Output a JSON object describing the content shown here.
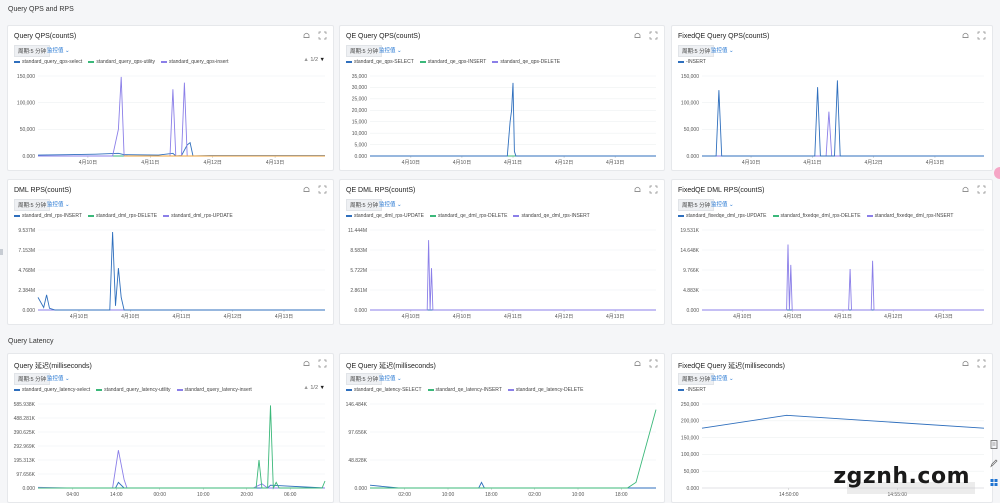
{
  "sections": [
    {
      "title": "Query QPS and RPS"
    },
    {
      "title": "Query Latency"
    }
  ],
  "controls": {
    "period": "周期:5 分钟",
    "metric": "监控值"
  },
  "pager": "1/2",
  "watermark": "zgznh.com",
  "colors": {
    "blue": "#2f6fbd",
    "green": "#3bb87a",
    "purple": "#8b7fe8",
    "orange": "#f0a33a",
    "dark": "#1f5fa8"
  },
  "panels": [
    {
      "id": "p1",
      "title": "Query QPS(countS)",
      "legend": [
        {
          "label": "standard_query_qps-select",
          "color": "#2f6fbd"
        },
        {
          "label": "standard_query_qps-utility",
          "color": "#3bb87a"
        },
        {
          "label": "standard_query_qps-insert",
          "color": "#8b7fe8"
        }
      ],
      "pager": true,
      "chart_data": {
        "type": "line",
        "yticks": [
          "150,000",
          "100,000",
          "50,000",
          "0.000"
        ],
        "ylim": [
          0,
          180000
        ],
        "xticks": [
          "4月10日",
          "4月11日",
          "4月12日",
          "4月13日"
        ],
        "series": [
          {
            "color": "#2f6fbd",
            "points": [
              [
                0,
                2000
              ],
              [
                0.1,
                3000
              ],
              [
                0.2,
                4000
              ],
              [
                0.28,
                6000
              ],
              [
                0.3,
                3000
              ],
              [
                0.42,
                2000
              ],
              [
                0.47,
                6000
              ],
              [
                0.48,
                0
              ],
              [
                0.5,
                1000
              ],
              [
                0.52,
                25000
              ],
              [
                0.53,
                30000
              ],
              [
                0.54,
                0
              ],
              [
                0.6,
                1000
              ],
              [
                1,
                1000
              ]
            ]
          },
          {
            "color": "#3bb87a",
            "points": [
              [
                0,
                0
              ],
              [
                0.3,
                0
              ],
              [
                0.5,
                0
              ],
              [
                1,
                0
              ]
            ]
          },
          {
            "color": "#8b7fe8",
            "points": [
              [
                0,
                0
              ],
              [
                0.26,
                0
              ],
              [
                0.28,
                60000
              ],
              [
                0.29,
                178000
              ],
              [
                0.3,
                0
              ],
              [
                0.46,
                0
              ],
              [
                0.47,
                150000
              ],
              [
                0.48,
                0
              ],
              [
                0.5,
                0
              ],
              [
                0.51,
                165000
              ],
              [
                0.52,
                0
              ],
              [
                1,
                0
              ]
            ]
          },
          {
            "color": "#f0a33a",
            "points": [
              [
                0.3,
                0
              ],
              [
                0.6,
                0
              ],
              [
                1,
                0
              ]
            ]
          }
        ]
      }
    },
    {
      "id": "p2",
      "title": "QE Query QPS(countS)",
      "legend": [
        {
          "label": "standard_qe_qps-SELECT",
          "color": "#2f6fbd"
        },
        {
          "label": "standard_qe_qps-INSERT",
          "color": "#3bb87a"
        },
        {
          "label": "standard_qe_qps-DELETE",
          "color": "#8b7fe8"
        }
      ],
      "chart_data": {
        "type": "line",
        "yticks": [
          "35,000",
          "30,000",
          "25,000",
          "20,000",
          "15,000",
          "10,000",
          "5,000",
          "0.000"
        ],
        "ylim": [
          0,
          35000
        ],
        "xticks": [
          "4月10日",
          "4月10日",
          "4月11日",
          "4月12日",
          "4月13日"
        ],
        "series": [
          {
            "color": "#3bb87a",
            "points": [
              [
                0,
                0
              ],
              [
                1,
                0
              ]
            ]
          },
          {
            "color": "#2f6fbd",
            "points": [
              [
                0,
                0
              ],
              [
                0.48,
                0
              ],
              [
                0.49,
                15000
              ],
              [
                0.495,
                20000
              ],
              [
                0.5,
                32000
              ],
              [
                0.505,
                2000
              ],
              [
                0.51,
                0
              ],
              [
                1,
                0
              ]
            ]
          }
        ]
      }
    },
    {
      "id": "p3",
      "title": "FixedQE Query QPS(countS)",
      "legend": [
        {
          "label": "-INSERT",
          "color": "#2f6fbd"
        }
      ],
      "chart_data": {
        "type": "line",
        "yticks": [
          "150,000",
          "100,000",
          "50,000",
          "0.000"
        ],
        "ylim": [
          0,
          180000
        ],
        "xticks": [
          "4月10日",
          "4月11日",
          "4月12日",
          "4月13日"
        ],
        "series": [
          {
            "color": "#8b7fe8",
            "points": [
              [
                0,
                0
              ],
              [
                0.44,
                0
              ],
              [
                0.45,
                100000
              ],
              [
                0.46,
                0
              ],
              [
                1,
                0
              ]
            ]
          },
          {
            "color": "#2f6fbd",
            "points": [
              [
                0,
                0
              ],
              [
                0.05,
                0
              ],
              [
                0.06,
                148000
              ],
              [
                0.07,
                0
              ],
              [
                0.4,
                0
              ],
              [
                0.41,
                155000
              ],
              [
                0.42,
                0
              ],
              [
                0.47,
                0
              ],
              [
                0.48,
                170000
              ],
              [
                0.49,
                0
              ],
              [
                1,
                0
              ]
            ]
          }
        ]
      }
    },
    {
      "id": "p4",
      "title": "DML RPS(countS)",
      "legend": [
        {
          "label": "standard_dml_rps-INSERT",
          "color": "#2f6fbd"
        },
        {
          "label": "standard_dml_rps-DELETE",
          "color": "#3bb87a"
        },
        {
          "label": "standard_dml_rps-UPDATE",
          "color": "#8b7fe8"
        }
      ],
      "chart_data": {
        "type": "line",
        "yticks": [
          "9.537M",
          "7.153M",
          "4.768M",
          "2.384M",
          "0.000"
        ],
        "ylim": [
          0,
          9.537
        ],
        "xticks": [
          "4月10日",
          "4月10日",
          "4月11日",
          "4月12日",
          "4月13日"
        ],
        "series": [
          {
            "color": "#3bb87a",
            "points": [
              [
                0,
                0
              ],
              [
                1,
                0
              ]
            ]
          },
          {
            "color": "#8b7fe8",
            "points": [
              [
                0,
                0
              ],
              [
                1,
                0
              ]
            ]
          },
          {
            "color": "#2f6fbd",
            "points": [
              [
                0,
                1.5
              ],
              [
                0.02,
                0.3
              ],
              [
                0.03,
                1.8
              ],
              [
                0.04,
                0.2
              ],
              [
                0.06,
                0
              ],
              [
                0.25,
                0
              ],
              [
                0.26,
                9.3
              ],
              [
                0.27,
                0.5
              ],
              [
                0.28,
                5
              ],
              [
                0.29,
                1.5
              ],
              [
                0.3,
                0
              ],
              [
                1,
                0
              ]
            ]
          }
        ]
      }
    },
    {
      "id": "p5",
      "title": "QE DML RPS(countS)",
      "legend": [
        {
          "label": "standard_qe_dml_rps-UPDATE",
          "color": "#2f6fbd"
        },
        {
          "label": "standard_qe_dml_rps-DELETE",
          "color": "#3bb87a"
        },
        {
          "label": "standard_qe_dml_rps-INSERT",
          "color": "#8b7fe8"
        }
      ],
      "chart_data": {
        "type": "line",
        "yticks": [
          "11.444M",
          "8.583M",
          "5.722M",
          "2.861M",
          "0.000"
        ],
        "ylim": [
          0,
          11.444
        ],
        "xticks": [
          "4月10日",
          "4月10日",
          "4月11日",
          "4月12日",
          "4月13日"
        ],
        "series": [
          {
            "color": "#2f6fbd",
            "points": [
              [
                0,
                0
              ],
              [
                1,
                0
              ]
            ]
          },
          {
            "color": "#8b7fe8",
            "points": [
              [
                0,
                0
              ],
              [
                0.2,
                0
              ],
              [
                0.205,
                10
              ],
              [
                0.21,
                0
              ],
              [
                0.215,
                6
              ],
              [
                0.22,
                0
              ],
              [
                1,
                0
              ]
            ]
          }
        ]
      }
    },
    {
      "id": "p6",
      "title": "FixedQE DML RPS(countS)",
      "legend": [
        {
          "label": "standard_fixedqe_dml_rps-UPDATE",
          "color": "#2f6fbd"
        },
        {
          "label": "standard_fixedqe_dml_rps-DELETE",
          "color": "#3bb87a"
        },
        {
          "label": "standard_fixedqe_dml_rps-INSERT",
          "color": "#8b7fe8"
        }
      ],
      "chart_data": {
        "type": "line",
        "yticks": [
          "19.531K",
          "14.648K",
          "9.766K",
          "4.883K",
          "0.000"
        ],
        "ylim": [
          0,
          19.531
        ],
        "xticks": [
          "4月10日",
          "4月10日",
          "4月11日",
          "4月12日",
          "4月13日"
        ],
        "series": [
          {
            "color": "#2f6fbd",
            "points": [
              [
                0,
                0
              ],
              [
                1,
                0
              ]
            ]
          },
          {
            "color": "#8b7fe8",
            "points": [
              [
                0,
                0
              ],
              [
                0.3,
                0
              ],
              [
                0.305,
                16
              ],
              [
                0.31,
                0
              ],
              [
                0.315,
                11
              ],
              [
                0.32,
                0
              ],
              [
                0.52,
                0
              ],
              [
                0.525,
                10
              ],
              [
                0.53,
                0
              ],
              [
                0.6,
                0
              ],
              [
                0.605,
                12
              ],
              [
                0.61,
                0
              ],
              [
                1,
                0
              ]
            ]
          }
        ]
      }
    },
    {
      "id": "p7",
      "title": "Query 延迟(milliseconds)",
      "legend": [
        {
          "label": "standard_query_latency-select",
          "color": "#2f6fbd"
        },
        {
          "label": "standard_query_latency-utility",
          "color": "#3bb87a"
        },
        {
          "label": "standard_query_latency-insert",
          "color": "#8b7fe8"
        }
      ],
      "pager": true,
      "chart_data": {
        "type": "line",
        "yticks": [
          "585.938K",
          "488.281K",
          "390.625K",
          "292.969K",
          "195.313K",
          "97.656K",
          "0.000"
        ],
        "ylim": [
          0,
          600
        ],
        "xticks": [
          "04:00",
          "14:00",
          "00:00",
          "10:00",
          "20:00",
          "06:00"
        ],
        "series": [
          {
            "color": "#2f6fbd",
            "points": [
              [
                0,
                0
              ],
              [
                0.27,
                0
              ],
              [
                0.28,
                40
              ],
              [
                0.3,
                0
              ],
              [
                0.8,
                0
              ],
              [
                0.81,
                20
              ],
              [
                1,
                0
              ]
            ]
          },
          {
            "color": "#8b7fe8",
            "points": [
              [
                0,
                5
              ],
              [
                0.1,
                0
              ],
              [
                0.26,
                0
              ],
              [
                0.28,
                270
              ],
              [
                0.3,
                60
              ],
              [
                0.31,
                0
              ],
              [
                0.75,
                0
              ],
              [
                0.78,
                30
              ],
              [
                0.8,
                0
              ],
              [
                1,
                0
              ]
            ]
          },
          {
            "color": "#3bb87a",
            "points": [
              [
                0,
                0
              ],
              [
                0.76,
                0
              ],
              [
                0.77,
                200
              ],
              [
                0.78,
                0
              ],
              [
                0.8,
                0
              ],
              [
                0.81,
                590
              ],
              [
                0.82,
                0
              ],
              [
                0.83,
                40
              ],
              [
                0.84,
                0
              ],
              [
                0.99,
                0
              ],
              [
                1,
                50
              ]
            ]
          }
        ]
      }
    },
    {
      "id": "p8",
      "title": "QE Query 延迟(milliseconds)",
      "legend": [
        {
          "label": "standard_qe_latency-SELECT",
          "color": "#2f6fbd"
        },
        {
          "label": "standard_qe_latency-INSERT",
          "color": "#3bb87a"
        },
        {
          "label": "standard_qe_latency-DELETE",
          "color": "#8b7fe8"
        }
      ],
      "chart_data": {
        "type": "line",
        "yticks": [
          "146.484K",
          "97.656K",
          "48.828K",
          "0.000"
        ],
        "ylim": [
          0,
          150
        ],
        "xticks": [
          "02:00",
          "10:00",
          "18:00",
          "02:00",
          "10:00",
          "18:00"
        ],
        "series": [
          {
            "color": "#2f6fbd",
            "points": [
              [
                0,
                5
              ],
              [
                0.1,
                0
              ],
              [
                0.38,
                0
              ],
              [
                0.39,
                10
              ],
              [
                0.4,
                0
              ],
              [
                0.9,
                0
              ],
              [
                1,
                0
              ]
            ]
          },
          {
            "color": "#3bb87a",
            "points": [
              [
                0,
                0
              ],
              [
                0.9,
                0
              ],
              [
                0.93,
                10
              ],
              [
                1,
                140
              ]
            ]
          }
        ]
      }
    },
    {
      "id": "p9",
      "title": "FixedQE Query 延迟(milliseconds)",
      "legend": [
        {
          "label": "-INSERT",
          "color": "#2f6fbd"
        }
      ],
      "chart_data": {
        "type": "line",
        "yticks": [
          "250,000",
          "200,000",
          "150,000",
          "100,000",
          "50,000",
          "0.000"
        ],
        "ylim": [
          0,
          260000
        ],
        "xticks": [
          "14:50:00",
          "14:55:00"
        ],
        "series": [
          {
            "color": "#2f6fbd",
            "points": [
              [
                0,
                185000
              ],
              [
                0.3,
                225000
              ],
              [
                1,
                185000
              ]
            ]
          }
        ]
      }
    }
  ]
}
